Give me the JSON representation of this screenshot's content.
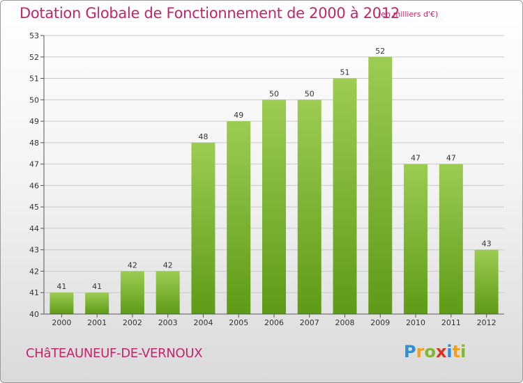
{
  "title": "Dotation Globale de Fonctionnement de 2000 à 2012",
  "subtitle": "(en milliers d'€)",
  "commune": "CHâTEAUNEUF-DE-VERNOUX",
  "logo": {
    "text": "Proxiti",
    "letters": [
      {
        "char": "P",
        "color": "#2f8fd0"
      },
      {
        "char": "r",
        "color": "#f0a020"
      },
      {
        "char": "o",
        "color": "#80b830"
      },
      {
        "char": "x",
        "color": "#e03020"
      },
      {
        "char": "i",
        "color": "#2f8fd0"
      },
      {
        "char": "t",
        "color": "#f0a020"
      },
      {
        "char": "i",
        "color": "#80b830"
      }
    ]
  },
  "colors": {
    "title": "#c4246a",
    "bar_top": "#9ccc52",
    "bar_bottom": "#5e9b16",
    "grid": "#c8c8c8",
    "axis": "#555555"
  },
  "chart_data": {
    "type": "bar",
    "title": "Dotation Globale de Fonctionnement de 2000 à 2012",
    "subtitle": "(en milliers d'€)",
    "categories": [
      "2000",
      "2001",
      "2002",
      "2003",
      "2004",
      "2005",
      "2006",
      "2007",
      "2008",
      "2009",
      "2010",
      "2011",
      "2012"
    ],
    "values": [
      41,
      41,
      42,
      42,
      48,
      49,
      50,
      50,
      51,
      52,
      47,
      47,
      43
    ],
    "ylim": [
      40,
      53
    ],
    "yticks": [
      40,
      41,
      42,
      43,
      44,
      45,
      46,
      47,
      48,
      49,
      50,
      51,
      52,
      53
    ],
    "grid": true,
    "data_labels": true,
    "legend": "none"
  }
}
